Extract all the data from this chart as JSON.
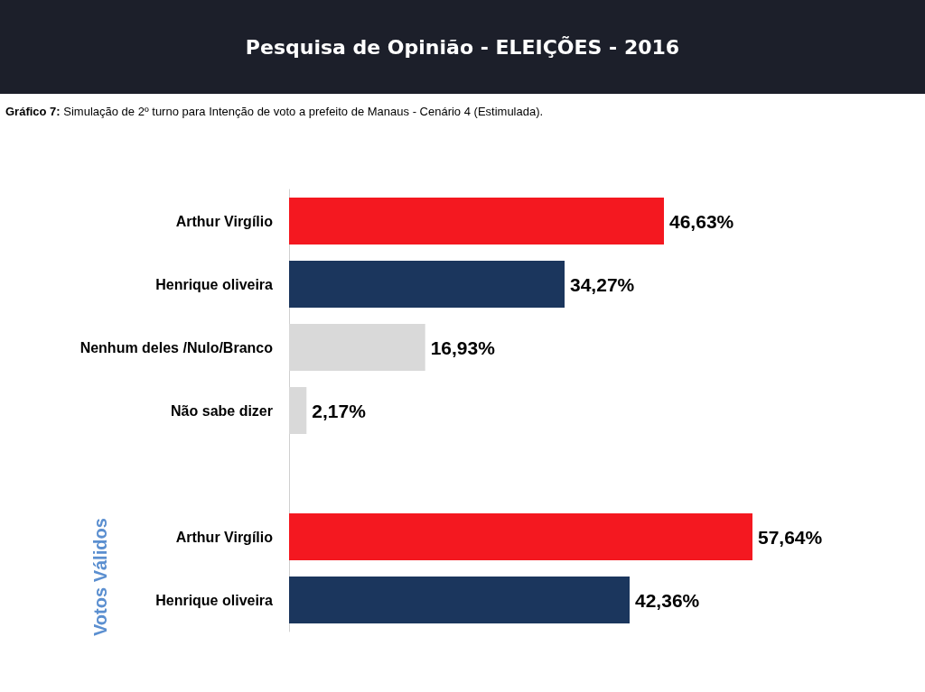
{
  "chart_data": {
    "type": "bar",
    "orientation": "horizontal",
    "title": "Pesquisa de Opinião - ELEIÇÕES - 2016",
    "subtitle": "Gráfico 7: Simulação de 2º turno para Intenção de voto a prefeito de Manaus - Cenário 4 (Estimulada).",
    "categories": [
      "Arthur Virgílio",
      "Henrique oliveira",
      "Nenhum deles /Nulo/Branco",
      "Não sabe dizer",
      null,
      "Arthur Virgílio",
      "Henrique oliveira"
    ],
    "values": [
      46.63,
      34.27,
      16.93,
      2.17,
      null,
      57.64,
      42.36
    ],
    "colors": [
      "#f41820",
      "#1b365d",
      "#d9d9d9",
      "#d9d9d9",
      null,
      "#f41820",
      "#1b365d"
    ],
    "value_labels": [
      "46,63%",
      "34,27%",
      "16,93%",
      "2,17%",
      null,
      "57,64%",
      "42,36%"
    ],
    "annotations": [
      "Votos Válidos"
    ]
  }
}
